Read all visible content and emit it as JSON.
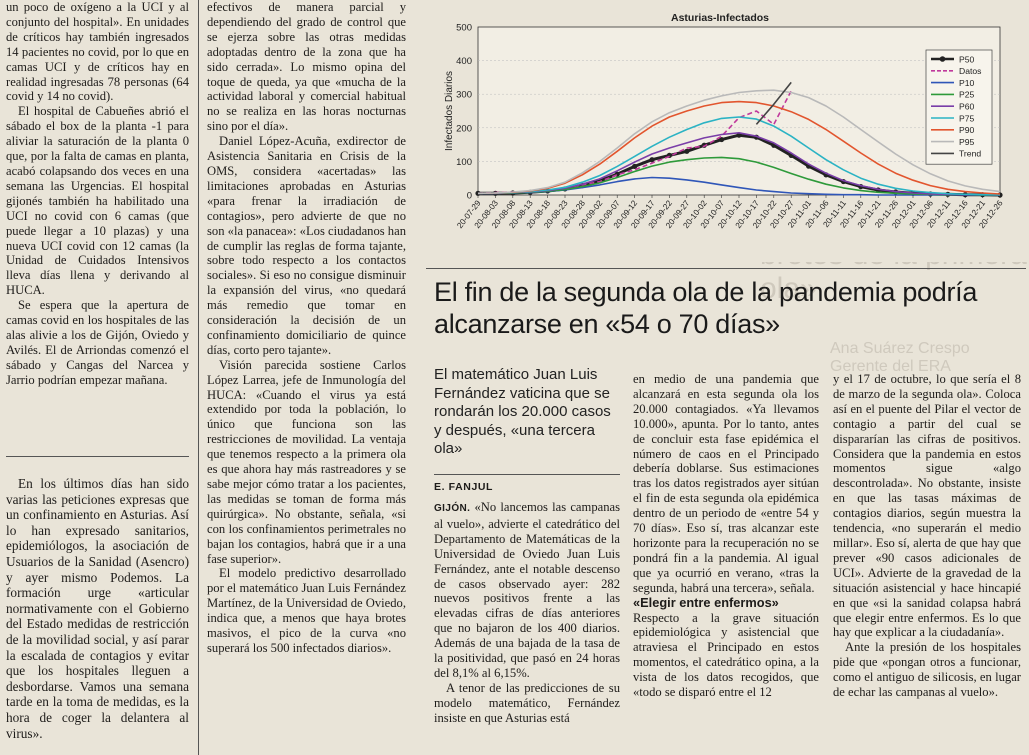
{
  "left_column": {
    "paragraphs_top": [
      "un poco de oxígeno a la UCI y al conjunto del hospital». En unidades de críticos hay también ingresados 14 pacientes no covid, por lo que en camas UCI y de críticos hay en realidad ingresadas 78 personas (64 covid y 14 no covid).",
      "El hospital de Cabueñes abrió el sábado el box de la planta -1 para aliviar la saturación de la planta 0 que, por la falta de camas en planta, acabó colapsando dos veces en una semana las Urgencias. El hospital gijonés también ha habilitado una UCI no covid con 6 camas (que puede llegar a 10 plazas) y una nueva UCI covid con 12 camas (la Unidad de Cuidados Intensivos lleva días llena y derivando al HUCA.",
      "Se espera que la apertura de camas covid en los hospitales de las alas alivie a los de Gijón, Oviedo y Avilés. El de Arriondas comenzó el sábado y Cangas del Narcea y Jarrio podrían empezar mañana."
    ],
    "paragraph_bottom": "En los últimos días han sido varias las peticiones expresas que un confinamiento en Asturias. Así lo han expresado sanitarios, epidemiólogos, la asociación de Usuarios de la Sanidad (Asencro) y ayer mismo Podemos. La formación urge «articular normativamente con el Gobierno del Estado medidas de restricción de la movilidad social, y así parar la escalada de contagios y evitar que los hospitales lleguen a desbordarse. Vamos una semana tarde en la toma de medidas, es la hora de coger la delantera al virus»."
  },
  "mid_column": {
    "paragraphs": [
      "efectivos de manera parcial y dependiendo del grado de control que se ejerza sobre las otras medidas adoptadas dentro de la zona que ha sido cerrada». Lo mismo opina del toque de queda, ya que «mucha de la actividad laboral y comercial habitual no se realiza en las horas nocturnas sino por el día».",
      "Daniel López-Acuña, exdirector de Asistencia Sanitaria en Crisis de la OMS, considera «acertadas» las limitaciones aprobadas en Asturias «para frenar la irradiación de contagios», pero advierte de que no son «la panacea»: «Los ciudadanos han de cumplir las reglas de forma tajante, sobre todo respecto a los contactos sociales». Si eso no consigue disminuir la expansión del virus, «no quedará más remedio que tomar en consideración la decisión de un confinamiento domiciliario de quince días, corto pero tajante».",
      "Visión parecida sostiene Carlos López Larrea, jefe de Inmunología del HUCA: «Cuando el virus ya está extendido por toda la población, lo único que funciona son las restricciones de movilidad. La ventaja que tenemos respecto a la primera ola es que ahora hay más rastreadores y se sabe mejor cómo tratar a los pacientes, las medidas se toman de forma más quirúrgica». No obstante, señala, «si con los confinamientos perimetrales no bajan los contagios, habrá que ir a una fase superior».",
      "El modelo predictivo desarrollado por el matemático Juan Luis Fernández Martínez, de la Universidad de Oviedo, indica que, a menos que haya brotes masivos, el pico de la curva «no superará los 500 infectados diarios»."
    ]
  },
  "article": {
    "headline": "El fin de la segunda ola de la pandemia podría alcanzarse en «54 o 70 días»",
    "lead": "El matemático Juan Luis Fernández vaticina que se rondarán los 20.000 casos y después, «una tercera ola»",
    "byline": "E. FANJUL",
    "col1": {
      "city": "GIJÓN.",
      "paragraphs": [
        " «No lancemos las campanas al vuelo», advierte el catedrático del Departamento de Matemáticas de la Universidad de Oviedo Juan Luis Fernández, ante el notable descenso de casos observado ayer: 282 nuevos positivos frente a las elevadas cifras de días anteriores que no bajaron de los 400 diarios. Además de una bajada de la tasa de la positividad, que pasó en 24 horas del 8,1% al 6,15%.",
        "A tenor de las predicciones de su modelo matemático, Fernández insiste en que Asturias está"
      ]
    },
    "col2": {
      "paragraphs": [
        "en medio de una pandemia que alcanzará en esta segunda ola los 20.000 contagiados. «Ya llevamos 10.000», apunta. Por lo tanto, antes de concluir esta fase epidémica el número de caos en el Principado debería doblarse. Sus estimaciones tras los datos registrados ayer sitúan el fin de esta segunda ola epidémica dentro de un periodo de «entre 54 y 70 días». Eso sí, tras alcanzar este horizonte para la recuperación no se pondrá fin a la pandemia. Al igual que ya ocurrió en verano, «tras la segunda, habrá una tercera», señala."
      ],
      "subhead": "«Elegir entre enfermos»",
      "paragraphs_after": [
        "Respecto a la grave situación epidemiológica y asistencial que atraviesa el Principado en estos momentos, el catedrático opina, a la vista de los datos recogidos, que «todo se disparó entre el 12"
      ]
    },
    "col3": {
      "paragraphs": [
        "y el 17 de octubre, lo que sería el 8 de marzo de la segunda ola». Coloca así en el puente del Pilar el vector de contagio a partir del cual se dispararían las cifras de positivos. Considera que la pandemia en estos momentos sigue «algo descontrolada». No obstante, insiste en que las tasas máximas de contagios diarios, según muestra la tendencia, «no superarán el medio millar». Eso sí, alerta de que hay que prever «90 casos adicionales de UCI». Advierte de la gravedad de la situación asistencial y hace hincapié en que «si la sanidad colapsa habrá que elegir entre enfermos. Es lo que hay que explicar a la ciudadanía».",
        "Ante la presión de los hospitales pide que «pongan otros a funcionar, como el antiguo de silicosis, en lugar de echar las campanas al vuelo»."
      ]
    }
  },
  "show_through": {
    "line1": "que existe",
    "line2": "brotes de la primera ola»",
    "line3": "Ana Suárez Crespo Gerente del ERA"
  },
  "chart_data": {
    "type": "line",
    "title": "Asturias-Infectados",
    "xlabel": "",
    "ylabel": "Infectados Diarios",
    "ylim": [
      0,
      500
    ],
    "yticks": [
      0,
      100,
      200,
      300,
      400,
      500
    ],
    "x": [
      "20-07-29",
      "20-08-03",
      "20-08-08",
      "20-08-13",
      "20-08-18",
      "20-08-23",
      "20-08-28",
      "20-09-02",
      "20-09-07",
      "20-09-12",
      "20-09-17",
      "20-09-22",
      "20-09-27",
      "20-10-02",
      "20-10-07",
      "20-10-12",
      "20-10-17",
      "20-10-22",
      "20-10-27",
      "20-11-01",
      "20-11-06",
      "20-11-11",
      "20-11-16",
      "20-11-21",
      "20-11-26",
      "20-12-01",
      "20-12-06",
      "20-12-11",
      "20-12-16",
      "20-12-21",
      "20-12-26"
    ],
    "legend_position": "right",
    "series": [
      {
        "name": "P50",
        "color": "#222222",
        "values": [
          5,
          5,
          6,
          8,
          12,
          18,
          28,
          42,
          62,
          85,
          105,
          118,
          130,
          148,
          165,
          178,
          172,
          148,
          118,
          86,
          60,
          40,
          25,
          15,
          9,
          5,
          3,
          2,
          1,
          1,
          0
        ]
      },
      {
        "name": "Datos",
        "color": "#c0399c",
        "values": [
          5,
          7,
          9,
          10,
          14,
          20,
          30,
          40,
          60,
          75,
          95,
          115,
          140,
          145,
          175,
          230,
          250,
          210,
          310,
          null,
          null,
          null,
          null,
          null,
          null,
          null,
          null,
          null,
          null,
          null,
          null
        ]
      },
      {
        "name": "P10",
        "color": "#2f56b8",
        "values": [
          5,
          5,
          6,
          7,
          10,
          15,
          22,
          30,
          40,
          48,
          52,
          50,
          45,
          38,
          30,
          22,
          15,
          10,
          6,
          4,
          2,
          1,
          1,
          0,
          0,
          0,
          0,
          0,
          0,
          0,
          0
        ]
      },
      {
        "name": "P25",
        "color": "#2e9a3a",
        "values": [
          5,
          5,
          6,
          8,
          11,
          16,
          25,
          36,
          52,
          70,
          86,
          98,
          105,
          110,
          112,
          108,
          98,
          82,
          64,
          47,
          32,
          21,
          13,
          8,
          5,
          3,
          2,
          1,
          1,
          0,
          0
        ]
      },
      {
        "name": "P60",
        "color": "#7a3ea8",
        "values": [
          5,
          5,
          7,
          9,
          13,
          20,
          32,
          48,
          72,
          98,
          122,
          140,
          155,
          170,
          180,
          185,
          175,
          155,
          125,
          92,
          65,
          43,
          28,
          17,
          10,
          6,
          3,
          2,
          1,
          1,
          0
        ]
      },
      {
        "name": "P75",
        "color": "#2bb3c4",
        "values": [
          5,
          6,
          7,
          10,
          15,
          23,
          38,
          58,
          85,
          115,
          145,
          172,
          195,
          215,
          228,
          232,
          226,
          205,
          175,
          140,
          105,
          75,
          50,
          32,
          20,
          12,
          7,
          4,
          2,
          1,
          1
        ]
      },
      {
        "name": "P90",
        "color": "#e2552e",
        "values": [
          5,
          6,
          8,
          12,
          20,
          35,
          60,
          92,
          130,
          170,
          205,
          232,
          250,
          265,
          275,
          278,
          275,
          265,
          248,
          225,
          195,
          160,
          125,
          92,
          65,
          44,
          28,
          17,
          10,
          6,
          3
        ]
      },
      {
        "name": "P95",
        "color": "#b9b9b9",
        "values": [
          5,
          6,
          9,
          13,
          22,
          38,
          66,
          100,
          140,
          182,
          218,
          245,
          265,
          282,
          295,
          305,
          310,
          312,
          305,
          290,
          265,
          232,
          195,
          158,
          122,
          90,
          63,
          42,
          27,
          17,
          10
        ]
      },
      {
        "name": "Trend",
        "color": "#444444",
        "values": [
          null,
          null,
          null,
          null,
          null,
          null,
          null,
          null,
          null,
          null,
          null,
          null,
          null,
          null,
          null,
          null,
          210,
          270,
          335,
          null,
          null,
          null,
          null,
          null,
          null,
          null,
          null,
          null,
          null,
          null,
          null
        ]
      }
    ]
  }
}
